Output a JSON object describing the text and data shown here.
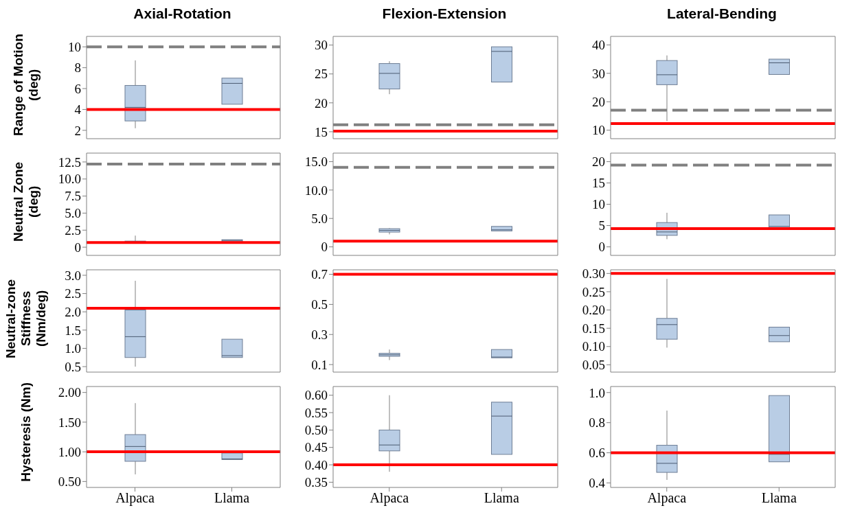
{
  "chart_data": [
    {
      "type": "box",
      "title": "Axial-Rotation",
      "ylabel": "Range of Motion (deg)",
      "categories": [
        null,
        null
      ],
      "ylim": [
        1.2,
        11.0
      ],
      "yticks": [
        2,
        4,
        6,
        8,
        10
      ],
      "tick_labels": "y",
      "series": [
        {
          "color": "#b9cde5",
          "boxes": [
            {
              "low": 2.2,
              "q1": 2.9,
              "median": 4.2,
              "q3": 6.3,
              "high": 8.7
            },
            {
              "low": 4.5,
              "q1": 4.5,
              "median": 6.5,
              "q3": 7.0,
              "high": 7.0
            }
          ]
        }
      ],
      "ref_lines": [
        {
          "axis": "y",
          "value": 10,
          "color": "#808080",
          "line_style": "dashed"
        },
        {
          "axis": "y",
          "value": 4,
          "color": "#ff0000",
          "line_style": "solid"
        }
      ]
    },
    {
      "type": "box",
      "title": "Flexion-Extension",
      "categories": [
        null,
        null
      ],
      "ylim": [
        13.8,
        31.5
      ],
      "yticks": [
        15,
        20,
        25,
        30
      ],
      "tick_labels": "y",
      "series": [
        {
          "color": "#b9cde5",
          "boxes": [
            {
              "low": 21.5,
              "q1": 22.4,
              "median": 25.1,
              "q3": 26.8,
              "high": 27.2
            },
            {
              "low": 23.6,
              "q1": 23.6,
              "median": 28.9,
              "q3": 29.7,
              "high": 29.7
            }
          ]
        }
      ],
      "ref_lines": [
        {
          "axis": "y",
          "value": 16.2,
          "color": "#808080",
          "line_style": "dashed"
        },
        {
          "axis": "y",
          "value": 15.1,
          "color": "#ff0000",
          "line_style": "solid"
        }
      ]
    },
    {
      "type": "box",
      "title": "Lateral-Bending",
      "categories": [
        null,
        null
      ],
      "ylim": [
        7,
        43
      ],
      "yticks": [
        10,
        20,
        30,
        40
      ],
      "tick_labels": "y",
      "series": [
        {
          "color": "#b9cde5",
          "boxes": [
            {
              "low": 13.2,
              "q1": 26.0,
              "median": 29.5,
              "q3": 34.5,
              "high": 36.3
            },
            {
              "low": 29.6,
              "q1": 29.6,
              "median": 33.7,
              "q3": 35.0,
              "high": 35.0
            }
          ]
        }
      ],
      "ref_lines": [
        {
          "axis": "y",
          "value": 17,
          "color": "#808080",
          "line_style": "dashed"
        },
        {
          "axis": "y",
          "value": 12.3,
          "color": "#ff0000",
          "line_style": "solid"
        }
      ]
    },
    {
      "type": "box",
      "ylabel": "Neutral Zone (deg)",
      "categories": [
        null,
        null
      ],
      "ylim": [
        -1.2,
        13.8
      ],
      "yticks": [
        0,
        2.5,
        {
          "value": 5,
          "label": "5.0"
        },
        7.5,
        {
          "value": 10,
          "label": "10.0"
        },
        12.5
      ],
      "tick_labels": "y",
      "series": [
        {
          "color": "#b9cde5",
          "boxes": [
            {
              "low": 0.6,
              "q1": 0.7,
              "median": 0.8,
              "q3": 0.9,
              "high": 1.7
            },
            {
              "low": 0.8,
              "q1": 0.8,
              "median": 1.0,
              "q3": 1.1,
              "high": 1.1
            }
          ]
        }
      ],
      "ref_lines": [
        {
          "axis": "y",
          "value": 12.2,
          "color": "#808080",
          "line_style": "dashed"
        },
        {
          "axis": "y",
          "value": 0.7,
          "color": "#ff0000",
          "line_style": "solid"
        }
      ]
    },
    {
      "type": "box",
      "categories": [
        null,
        null
      ],
      "ylim": [
        -1.5,
        16.5
      ],
      "yticks": [
        0,
        {
          "value": 5,
          "label": "5.0"
        },
        {
          "value": 10,
          "label": "10.0"
        },
        {
          "value": 15,
          "label": "15.0"
        }
      ],
      "tick_labels": "y",
      "series": [
        {
          "color": "#b9cde5",
          "boxes": [
            {
              "low": 2.2,
              "q1": 2.6,
              "median": 2.9,
              "q3": 3.2,
              "high": 3.3
            },
            {
              "low": 2.8,
              "q1": 2.8,
              "median": 3.0,
              "q3": 3.6,
              "high": 3.6
            }
          ]
        }
      ],
      "ref_lines": [
        {
          "axis": "y",
          "value": 14.0,
          "color": "#808080",
          "line_style": "dashed"
        },
        {
          "axis": "y",
          "value": 1.0,
          "color": "#ff0000",
          "line_style": "solid"
        }
      ]
    },
    {
      "type": "box",
      "categories": [
        null,
        null
      ],
      "ylim": [
        -2,
        22
      ],
      "yticks": [
        0,
        5,
        10,
        15,
        20
      ],
      "tick_labels": "y",
      "series": [
        {
          "color": "#b9cde5",
          "boxes": [
            {
              "low": 1.8,
              "q1": 2.7,
              "median": 3.5,
              "q3": 5.7,
              "high": 8.0
            },
            {
              "low": 4.2,
              "q1": 4.2,
              "median": 4.8,
              "q3": 7.5,
              "high": 7.5
            }
          ]
        }
      ],
      "ref_lines": [
        {
          "axis": "y",
          "value": 19.2,
          "color": "#808080",
          "line_style": "dashed"
        },
        {
          "axis": "y",
          "value": 4.3,
          "color": "#ff0000",
          "line_style": "solid"
        }
      ]
    },
    {
      "type": "box",
      "ylabel": "Neutral-zone Stiffness (Nm/deg)",
      "categories": [
        null,
        null
      ],
      "ylim": [
        0.35,
        3.15
      ],
      "yticks": [
        0.5,
        {
          "value": 1,
          "label": "1.0"
        },
        1.5,
        {
          "value": 2,
          "label": "2.0"
        },
        2.5,
        {
          "value": 3,
          "label": "3.0"
        }
      ],
      "tick_labels": "y",
      "series": [
        {
          "color": "#b9cde5",
          "boxes": [
            {
              "low": 0.5,
              "q1": 0.75,
              "median": 1.32,
              "q3": 2.05,
              "high": 2.85
            },
            {
              "low": 0.75,
              "q1": 0.75,
              "median": 0.8,
              "q3": 1.25,
              "high": 1.25
            }
          ]
        }
      ],
      "ref_lines": [
        {
          "axis": "y",
          "value": 2.1,
          "color": "#ff0000",
          "line_style": "solid"
        }
      ]
    },
    {
      "type": "box",
      "categories": [
        null,
        null
      ],
      "ylim": [
        0.05,
        0.73
      ],
      "yticks": [
        0.1,
        0.3,
        0.5,
        0.7
      ],
      "tick_labels": "y",
      "series": [
        {
          "color": "#b9cde5",
          "boxes": [
            {
              "low": 0.13,
              "q1": 0.155,
              "median": 0.165,
              "q3": 0.175,
              "high": 0.2
            },
            {
              "low": 0.145,
              "q1": 0.145,
              "median": 0.15,
              "q3": 0.2,
              "high": 0.2
            }
          ]
        }
      ],
      "ref_lines": [
        {
          "axis": "y",
          "value": 0.7,
          "color": "#ff0000",
          "line_style": "solid"
        }
      ]
    },
    {
      "type": "box",
      "categories": [
        null,
        null
      ],
      "ylim": [
        0.03,
        0.31
      ],
      "yticks": [
        0.05,
        {
          "value": 0.1,
          "label": "0.10"
        },
        0.15,
        {
          "value": 0.2,
          "label": "0.20"
        },
        0.25,
        {
          "value": 0.3,
          "label": "0.30"
        }
      ],
      "tick_labels": "y",
      "series": [
        {
          "color": "#b9cde5",
          "boxes": [
            {
              "low": 0.097,
              "q1": 0.12,
              "median": 0.16,
              "q3": 0.177,
              "high": 0.285
            },
            {
              "low": 0.113,
              "q1": 0.113,
              "median": 0.13,
              "q3": 0.153,
              "high": 0.153
            }
          ]
        }
      ],
      "ref_lines": [
        {
          "axis": "y",
          "value": 0.3,
          "color": "#ff0000",
          "line_style": "solid"
        }
      ]
    },
    {
      "type": "box",
      "ylabel": "Hysteresis (Nm)",
      "categories": [
        "Alpaca",
        "Llama"
      ],
      "ylim": [
        0.4,
        2.1
      ],
      "yticks": [
        {
          "value": 0.5,
          "label": "0.50"
        },
        {
          "value": 1,
          "label": "1.00"
        },
        {
          "value": 1.5,
          "label": "1.50"
        },
        {
          "value": 2,
          "label": "2.00"
        }
      ],
      "series": [
        {
          "color": "#b9cde5",
          "boxes": [
            {
              "low": 0.62,
              "q1": 0.84,
              "median": 1.09,
              "q3": 1.29,
              "high": 1.82
            },
            {
              "low": 0.87,
              "q1": 0.87,
              "median": 0.88,
              "q3": 0.98,
              "high": 0.98
            }
          ]
        }
      ],
      "ref_lines": [
        {
          "axis": "y",
          "value": 1.0,
          "color": "#ff0000",
          "line_style": "solid"
        }
      ]
    },
    {
      "type": "box",
      "categories": [
        "Alpaca",
        "Llama"
      ],
      "ylim": [
        0.335,
        0.625
      ],
      "yticks": [
        0.35,
        {
          "value": 0.4,
          "label": "0.40"
        },
        0.45,
        {
          "value": 0.5,
          "label": "0.50"
        },
        0.55,
        {
          "value": 0.6,
          "label": "0.60"
        }
      ],
      "series": [
        {
          "color": "#b9cde5",
          "boxes": [
            {
              "low": 0.38,
              "q1": 0.44,
              "median": 0.457,
              "q3": 0.5,
              "high": 0.6
            },
            {
              "low": 0.43,
              "q1": 0.43,
              "median": 0.54,
              "q3": 0.58,
              "high": 0.58
            }
          ]
        }
      ],
      "ref_lines": [
        {
          "axis": "y",
          "value": 0.4,
          "color": "#ff0000",
          "line_style": "solid"
        }
      ]
    },
    {
      "type": "box",
      "categories": [
        "Alpaca",
        "Llama"
      ],
      "ylim": [
        0.37,
        1.04
      ],
      "yticks": [
        0.4,
        0.6,
        0.8,
        {
          "value": 1,
          "label": "1.0"
        }
      ],
      "series": [
        {
          "color": "#b9cde5",
          "boxes": [
            {
              "low": 0.42,
              "q1": 0.47,
              "median": 0.53,
              "q3": 0.65,
              "high": 0.88
            },
            {
              "low": 0.54,
              "q1": 0.54,
              "median": 0.59,
              "q3": 0.98,
              "high": 0.98
            }
          ]
        }
      ],
      "ref_lines": [
        {
          "axis": "y",
          "value": 0.6,
          "color": "#ff0000",
          "line_style": "solid"
        }
      ]
    }
  ]
}
